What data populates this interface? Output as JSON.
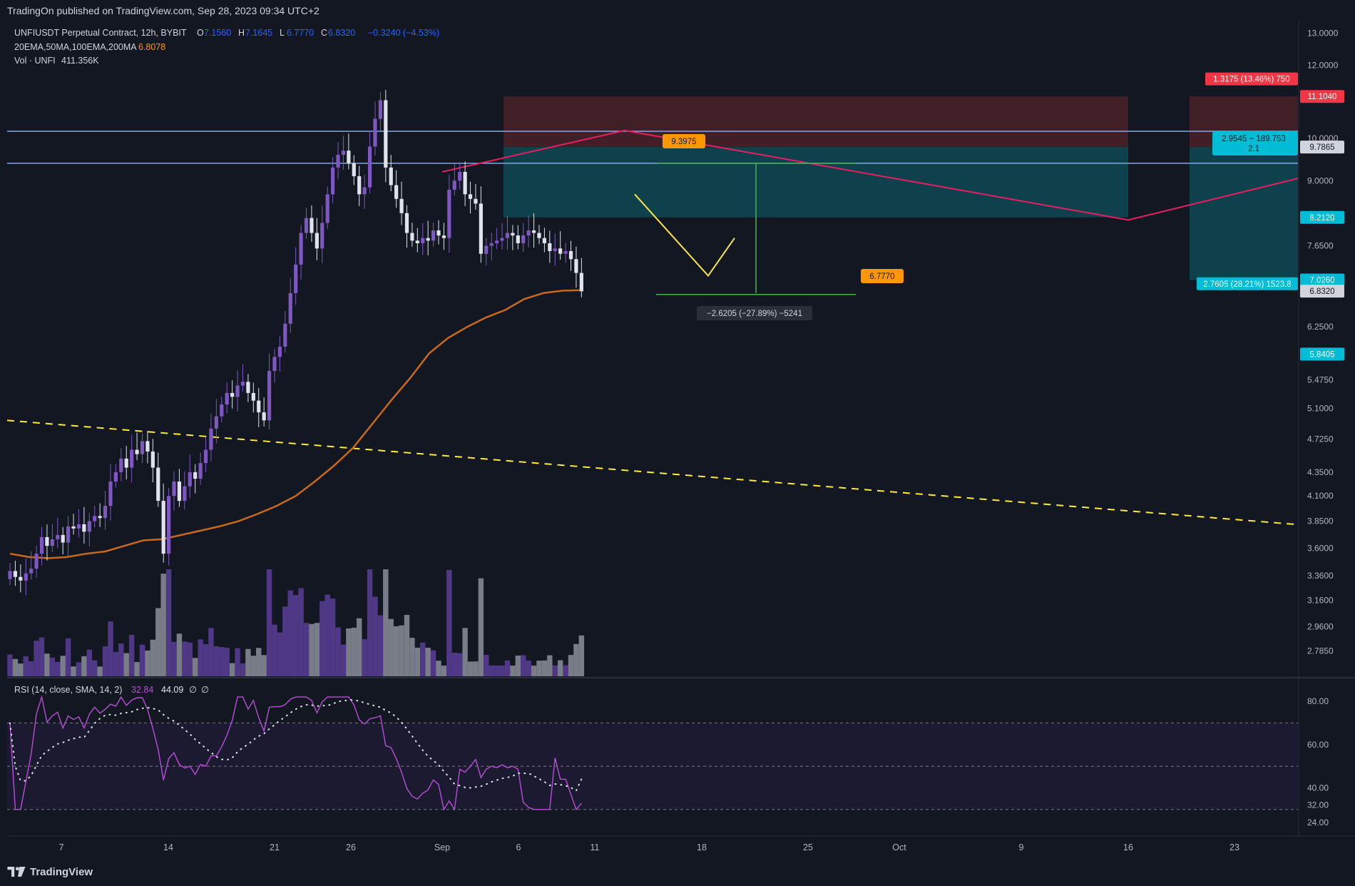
{
  "publish_line": "TradingOn published on TradingView.com, Sep 28, 2023 09:34 UTC+2",
  "footer_brand": "TradingView",
  "legend": {
    "symbol": "UNFIUSDT Perpetual Contract, 12h, BYBIT",
    "ohlc": [
      {
        "k": "O",
        "v": "7.1560"
      },
      {
        "k": "H",
        "v": "7.1645"
      },
      {
        "k": "L",
        "v": "6.7770"
      },
      {
        "k": "C",
        "v": "6.8320"
      }
    ],
    "change": "−0.3240 (−4.53%)",
    "ema_label": "20EMA,50MA,100EMA,200MA",
    "ema_value": "6.8078",
    "vol_label": "Vol · UNFI",
    "vol_value": "411.356K",
    "rsi_label": "RSI (14, close, SMA, 14, 2)",
    "rsi_value": "32.84",
    "rsi_sma_value": "44.09",
    "rsi_na1": "∅",
    "rsi_na2": "∅"
  },
  "colors": {
    "up": "#7e57c2",
    "down": "#e0e3eb",
    "ema": "#c8691c",
    "rsi": "#b74fd6",
    "trend_pink": "#e91e63",
    "dash_yellow": "#ffeb3b",
    "hline_blue": "#7fa9e8",
    "target_fill": "#0e4650",
    "stop_fill": "#4a2128",
    "orange_tag": "#ff9800",
    "teal_tag": "#00bcd4",
    "red_tag": "#f23645"
  },
  "chart_data": {
    "type": "candlestick",
    "timeframe": "12h",
    "price_axis": {
      "ticks": [
        "13.0000",
        "12.0000",
        "10.0000",
        "9.0000",
        "7.6500",
        "6.2500",
        "5.4750",
        "5.1000",
        "4.7250",
        "4.3500",
        "4.1000",
        "3.8500",
        "3.6000",
        "3.3600",
        "3.1600",
        "2.9600",
        "2.7850"
      ],
      "scale": "log",
      "ylim": [
        2.7,
        13.2
      ]
    },
    "time_axis": {
      "labels": [
        "7",
        "14",
        "21",
        "26",
        "Sep",
        "6",
        "11",
        "18",
        "25",
        "Oct",
        "9",
        "16",
        "23"
      ]
    },
    "price_tags": [
      {
        "label": "1.3175 (13.46%) 750",
        "kind": "red"
      },
      {
        "label": "11.1040",
        "kind": "red"
      },
      {
        "label": "9.7865",
        "kind": "grey"
      },
      {
        "label": "8.2120",
        "kind": "teal"
      },
      {
        "label": "7.0260",
        "kind": "teal"
      },
      {
        "label": "6.8320",
        "kind": "grey"
      },
      {
        "label": "5.8405",
        "kind": "teal"
      },
      {
        "label": "2.7605 (28.21%) 1523.8",
        "kind": "teal"
      }
    ],
    "position_box_label": {
      "line1": "2.9545 − 189.753",
      "line2": "2.1"
    },
    "annotations": {
      "high_tag": "9.3975",
      "low_tag": "6.7770",
      "measure": "−2.6205 (−27.89%) −5241"
    },
    "ema100": [
      3.55,
      3.52,
      3.51,
      3.52,
      3.55,
      3.57,
      3.62,
      3.67,
      3.68,
      3.72,
      3.76,
      3.8,
      3.85,
      3.92,
      4.0,
      4.1,
      4.25,
      4.42,
      4.62,
      4.9,
      5.2,
      5.5,
      5.85,
      6.08,
      6.25,
      6.4,
      6.52,
      6.7,
      6.8,
      6.84,
      6.85
    ],
    "rsi": {
      "ylim": [
        20,
        85
      ],
      "ticks": [
        "80.00",
        "60.00",
        "40.00",
        "32.00",
        "24.00"
      ],
      "overbought": 70,
      "oversold": 30,
      "mid": 50,
      "last": 32.84,
      "sma_last": 44.09
    }
  }
}
